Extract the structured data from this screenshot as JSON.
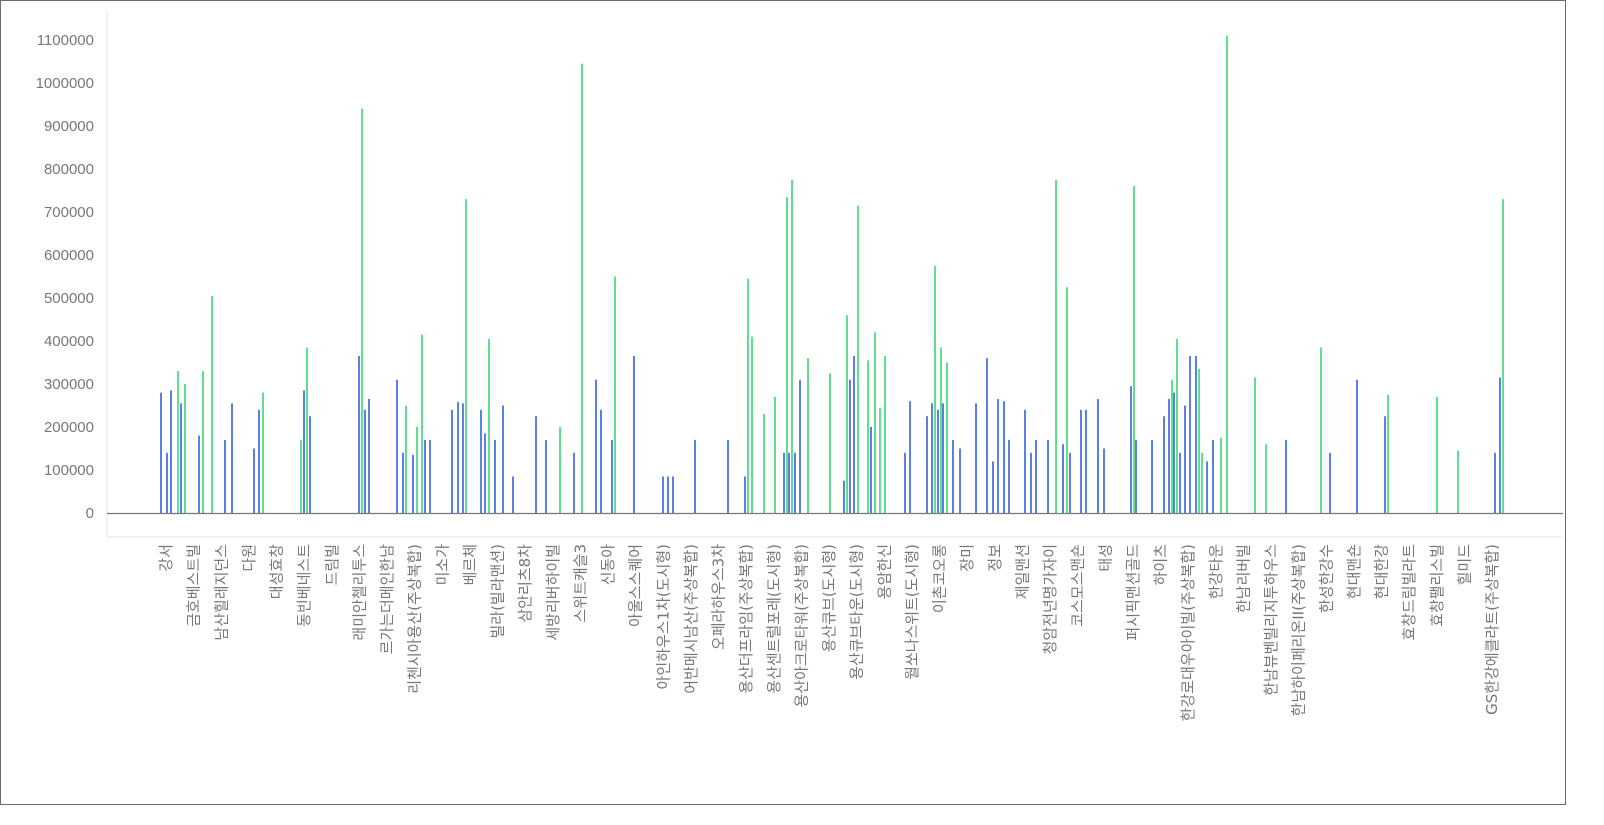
{
  "chart_data": {
    "type": "bar",
    "title": "",
    "xlabel": "",
    "ylabel": "",
    "ylim": [
      0,
      1150000
    ],
    "grid": false,
    "legend": "none",
    "yticks": [
      0,
      100000,
      200000,
      300000,
      400000,
      500000,
      600000,
      700000,
      800000,
      900000,
      1000000,
      1100000
    ],
    "colors": {
      "blue": "#5b7fe6",
      "green": "#5fe090"
    },
    "categories": [
      "강서",
      "금호베스트빌",
      "남산힐레지던스",
      "다원",
      "대성효창",
      "동빈베네스트",
      "드림빌",
      "래미안첼리투스",
      "르가는더메인한남",
      "리첸시아용산(주상복합)",
      "미소가",
      "베르체",
      "빌라(빌라맨션)",
      "삼안리츠8차",
      "세방리버하이빌",
      "스위트캐슬3",
      "신동아",
      "아울스스퀘어",
      "아인하우스1차(도시형)",
      "어반메시남산(주상복합)",
      "오페라하우스3차",
      "용산더프라임(주상복합)",
      "용산센트럴포레(도시형)",
      "용산아크로타워(주상복합)",
      "용산큐브(도시형)",
      "용산큐브타운(도시형)",
      "용암한신",
      "월쏘나스위트(도시형)",
      "이촌코오롱",
      "장미",
      "정보",
      "제일맨션",
      "청암전년명가자이",
      "코스모스맨숀",
      "태성",
      "퍼시픽맨션골드",
      "하이츠",
      "한강로대우아이빌(주상복합)",
      "한강타운",
      "한남리버빌",
      "한남뷰벤빌리지투하우스",
      "한남하이페리온II(주상복합)",
      "한성한강수",
      "현대맨숀",
      "현대한강",
      "효창드림빌라트",
      "효창팰리스빌",
      "힐미드",
      "GS한강에클라트(주상복합)"
    ],
    "bars": [
      {
        "x": 160,
        "v": 280000,
        "s": "blue"
      },
      {
        "x": 166,
        "v": 140000,
        "s": "blue"
      },
      {
        "x": 170,
        "v": 285000,
        "s": "blue"
      },
      {
        "x": 177,
        "v": 330000,
        "s": "green"
      },
      {
        "x": 180,
        "v": 255000,
        "s": "blue"
      },
      {
        "x": 184,
        "v": 300000,
        "s": "green"
      },
      {
        "x": 198,
        "v": 180000,
        "s": "blue"
      },
      {
        "x": 202,
        "v": 330000,
        "s": "green"
      },
      {
        "x": 211,
        "v": 505000,
        "s": "green"
      },
      {
        "x": 224,
        "v": 170000,
        "s": "blue"
      },
      {
        "x": 231,
        "v": 255000,
        "s": "blue"
      },
      {
        "x": 253,
        "v": 150000,
        "s": "blue"
      },
      {
        "x": 258,
        "v": 240000,
        "s": "blue"
      },
      {
        "x": 262,
        "v": 280000,
        "s": "green"
      },
      {
        "x": 300,
        "v": 170000,
        "s": "green"
      },
      {
        "x": 303,
        "v": 285000,
        "s": "blue"
      },
      {
        "x": 306,
        "v": 385000,
        "s": "green"
      },
      {
        "x": 309,
        "v": 225000,
        "s": "blue"
      },
      {
        "x": 358,
        "v": 365000,
        "s": "blue"
      },
      {
        "x": 361,
        "v": 940000,
        "s": "green"
      },
      {
        "x": 364,
        "v": 240000,
        "s": "blue"
      },
      {
        "x": 368,
        "v": 265000,
        "s": "blue"
      },
      {
        "x": 396,
        "v": 310000,
        "s": "blue"
      },
      {
        "x": 402,
        "v": 140000,
        "s": "blue"
      },
      {
        "x": 405,
        "v": 250000,
        "s": "green"
      },
      {
        "x": 412,
        "v": 135000,
        "s": "blue"
      },
      {
        "x": 416,
        "v": 200000,
        "s": "green"
      },
      {
        "x": 421,
        "v": 415000,
        "s": "green"
      },
      {
        "x": 424,
        "v": 170000,
        "s": "blue"
      },
      {
        "x": 429,
        "v": 170000,
        "s": "blue"
      },
      {
        "x": 451,
        "v": 240000,
        "s": "blue"
      },
      {
        "x": 457,
        "v": 258000,
        "s": "blue"
      },
      {
        "x": 462,
        "v": 255000,
        "s": "blue"
      },
      {
        "x": 465,
        "v": 730000,
        "s": "green"
      },
      {
        "x": 480,
        "v": 240000,
        "s": "blue"
      },
      {
        "x": 484,
        "v": 185000,
        "s": "blue"
      },
      {
        "x": 488,
        "v": 405000,
        "s": "green"
      },
      {
        "x": 494,
        "v": 170000,
        "s": "blue"
      },
      {
        "x": 502,
        "v": 250000,
        "s": "blue"
      },
      {
        "x": 512,
        "v": 85000,
        "s": "blue"
      },
      {
        "x": 535,
        "v": 225000,
        "s": "blue"
      },
      {
        "x": 545,
        "v": 170000,
        "s": "blue"
      },
      {
        "x": 559,
        "v": 200000,
        "s": "green"
      },
      {
        "x": 573,
        "v": 140000,
        "s": "blue"
      },
      {
        "x": 581,
        "v": 1045000,
        "s": "green"
      },
      {
        "x": 595,
        "v": 310000,
        "s": "blue"
      },
      {
        "x": 600,
        "v": 240000,
        "s": "blue"
      },
      {
        "x": 611,
        "v": 170000,
        "s": "blue"
      },
      {
        "x": 614,
        "v": 550000,
        "s": "green"
      },
      {
        "x": 633,
        "v": 365000,
        "s": "blue"
      },
      {
        "x": 662,
        "v": 85000,
        "s": "blue"
      },
      {
        "x": 667,
        "v": 85000,
        "s": "blue"
      },
      {
        "x": 672,
        "v": 85000,
        "s": "blue"
      },
      {
        "x": 694,
        "v": 170000,
        "s": "blue"
      },
      {
        "x": 727,
        "v": 170000,
        "s": "blue"
      },
      {
        "x": 744,
        "v": 85000,
        "s": "blue"
      },
      {
        "x": 747,
        "v": 545000,
        "s": "green"
      },
      {
        "x": 751,
        "v": 410000,
        "s": "green"
      },
      {
        "x": 763,
        "v": 230000,
        "s": "green"
      },
      {
        "x": 774,
        "v": 270000,
        "s": "green"
      },
      {
        "x": 783,
        "v": 140000,
        "s": "blue"
      },
      {
        "x": 786,
        "v": 735000,
        "s": "green"
      },
      {
        "x": 788,
        "v": 140000,
        "s": "blue"
      },
      {
        "x": 791,
        "v": 775000,
        "s": "green"
      },
      {
        "x": 794,
        "v": 140000,
        "s": "blue"
      },
      {
        "x": 799,
        "v": 310000,
        "s": "blue"
      },
      {
        "x": 807,
        "v": 360000,
        "s": "green"
      },
      {
        "x": 829,
        "v": 325000,
        "s": "green"
      },
      {
        "x": 843,
        "v": 75000,
        "s": "blue"
      },
      {
        "x": 846,
        "v": 460000,
        "s": "green"
      },
      {
        "x": 849,
        "v": 310000,
        "s": "blue"
      },
      {
        "x": 853,
        "v": 365000,
        "s": "blue"
      },
      {
        "x": 857,
        "v": 715000,
        "s": "green"
      },
      {
        "x": 867,
        "v": 355000,
        "s": "green"
      },
      {
        "x": 870,
        "v": 200000,
        "s": "blue"
      },
      {
        "x": 874,
        "v": 420000,
        "s": "green"
      },
      {
        "x": 879,
        "v": 245000,
        "s": "green"
      },
      {
        "x": 884,
        "v": 365000,
        "s": "green"
      },
      {
        "x": 904,
        "v": 140000,
        "s": "blue"
      },
      {
        "x": 909,
        "v": 260000,
        "s": "blue"
      },
      {
        "x": 926,
        "v": 225000,
        "s": "blue"
      },
      {
        "x": 931,
        "v": 255000,
        "s": "blue"
      },
      {
        "x": 934,
        "v": 575000,
        "s": "green"
      },
      {
        "x": 937,
        "v": 240000,
        "s": "blue"
      },
      {
        "x": 940,
        "v": 385000,
        "s": "green"
      },
      {
        "x": 942,
        "v": 255000,
        "s": "blue"
      },
      {
        "x": 946,
        "v": 350000,
        "s": "green"
      },
      {
        "x": 952,
        "v": 170000,
        "s": "blue"
      },
      {
        "x": 959,
        "v": 150000,
        "s": "blue"
      },
      {
        "x": 975,
        "v": 255000,
        "s": "blue"
      },
      {
        "x": 986,
        "v": 360000,
        "s": "blue"
      },
      {
        "x": 992,
        "v": 120000,
        "s": "blue"
      },
      {
        "x": 997,
        "v": 265000,
        "s": "blue"
      },
      {
        "x": 1003,
        "v": 260000,
        "s": "blue"
      },
      {
        "x": 1008,
        "v": 170000,
        "s": "blue"
      },
      {
        "x": 1024,
        "v": 240000,
        "s": "blue"
      },
      {
        "x": 1030,
        "v": 140000,
        "s": "blue"
      },
      {
        "x": 1035,
        "v": 170000,
        "s": "blue"
      },
      {
        "x": 1047,
        "v": 170000,
        "s": "blue"
      },
      {
        "x": 1055,
        "v": 775000,
        "s": "green"
      },
      {
        "x": 1062,
        "v": 160000,
        "s": "blue"
      },
      {
        "x": 1066,
        "v": 525000,
        "s": "green"
      },
      {
        "x": 1069,
        "v": 140000,
        "s": "blue"
      },
      {
        "x": 1080,
        "v": 240000,
        "s": "blue"
      },
      {
        "x": 1085,
        "v": 240000,
        "s": "blue"
      },
      {
        "x": 1097,
        "v": 265000,
        "s": "blue"
      },
      {
        "x": 1103,
        "v": 150000,
        "s": "blue"
      },
      {
        "x": 1130,
        "v": 295000,
        "s": "blue"
      },
      {
        "x": 1133,
        "v": 760000,
        "s": "green"
      },
      {
        "x": 1135,
        "v": 170000,
        "s": "blue"
      },
      {
        "x": 1151,
        "v": 170000,
        "s": "blue"
      },
      {
        "x": 1163,
        "v": 225000,
        "s": "blue"
      },
      {
        "x": 1168,
        "v": 265000,
        "s": "blue"
      },
      {
        "x": 1171,
        "v": 310000,
        "s": "green"
      },
      {
        "x": 1173,
        "v": 280000,
        "s": "blue"
      },
      {
        "x": 1176,
        "v": 405000,
        "s": "green"
      },
      {
        "x": 1179,
        "v": 140000,
        "s": "blue"
      },
      {
        "x": 1184,
        "v": 250000,
        "s": "blue"
      },
      {
        "x": 1189,
        "v": 365000,
        "s": "blue"
      },
      {
        "x": 1195,
        "v": 365000,
        "s": "blue"
      },
      {
        "x": 1198,
        "v": 335000,
        "s": "green"
      },
      {
        "x": 1201,
        "v": 140000,
        "s": "green"
      },
      {
        "x": 1206,
        "v": 120000,
        "s": "blue"
      },
      {
        "x": 1212,
        "v": 170000,
        "s": "blue"
      },
      {
        "x": 1220,
        "v": 175000,
        "s": "green"
      },
      {
        "x": 1226,
        "v": 1110000,
        "s": "green"
      },
      {
        "x": 1254,
        "v": 315000,
        "s": "green"
      },
      {
        "x": 1265,
        "v": 160000,
        "s": "green"
      },
      {
        "x": 1285,
        "v": 170000,
        "s": "blue"
      },
      {
        "x": 1320,
        "v": 385000,
        "s": "green"
      },
      {
        "x": 1329,
        "v": 140000,
        "s": "blue"
      },
      {
        "x": 1356,
        "v": 310000,
        "s": "blue"
      },
      {
        "x": 1384,
        "v": 225000,
        "s": "blue"
      },
      {
        "x": 1387,
        "v": 275000,
        "s": "green"
      },
      {
        "x": 1436,
        "v": 270000,
        "s": "green"
      },
      {
        "x": 1457,
        "v": 145000,
        "s": "green"
      },
      {
        "x": 1494,
        "v": 140000,
        "s": "blue"
      },
      {
        "x": 1499,
        "v": 315000,
        "s": "blue"
      },
      {
        "x": 1502,
        "v": 730000,
        "s": "green"
      }
    ]
  }
}
